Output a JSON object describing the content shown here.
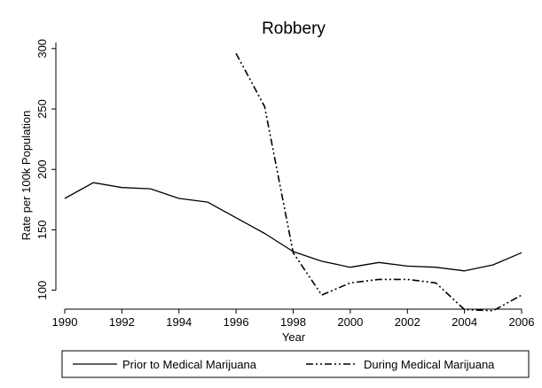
{
  "chart_data": {
    "type": "line",
    "title": "Robbery",
    "xlabel": "Year",
    "ylabel": "Rate per 100k Population",
    "xlim": [
      1990,
      2006
    ],
    "ylim": [
      88,
      305
    ],
    "x_ticks": [
      1990,
      1992,
      1994,
      1996,
      1998,
      2000,
      2002,
      2004,
      2006
    ],
    "y_ticks": [
      100,
      150,
      200,
      250,
      300
    ],
    "grid": false,
    "legend_position": "bottom",
    "series": [
      {
        "name": "Prior to Medical Marijuana",
        "style": "solid",
        "x": [
          1990,
          1991,
          1992,
          1993,
          1994,
          1995,
          1996,
          1997,
          1998,
          1999,
          2000,
          2001,
          2002,
          2003,
          2004,
          2005,
          2006
        ],
        "y": [
          176,
          189,
          185,
          184,
          176,
          173,
          160,
          147,
          132,
          124,
          119,
          123,
          120,
          119,
          116,
          121,
          131
        ]
      },
      {
        "name": "During Medical Marijuana",
        "style": "dash-dot-dot",
        "x": [
          1996,
          1997,
          1998,
          1999,
          2000,
          2001,
          2002,
          2003,
          2004,
          2005,
          2006
        ],
        "y": [
          296,
          252,
          131,
          96,
          106,
          109,
          109,
          106,
          84,
          83,
          96
        ]
      }
    ]
  }
}
